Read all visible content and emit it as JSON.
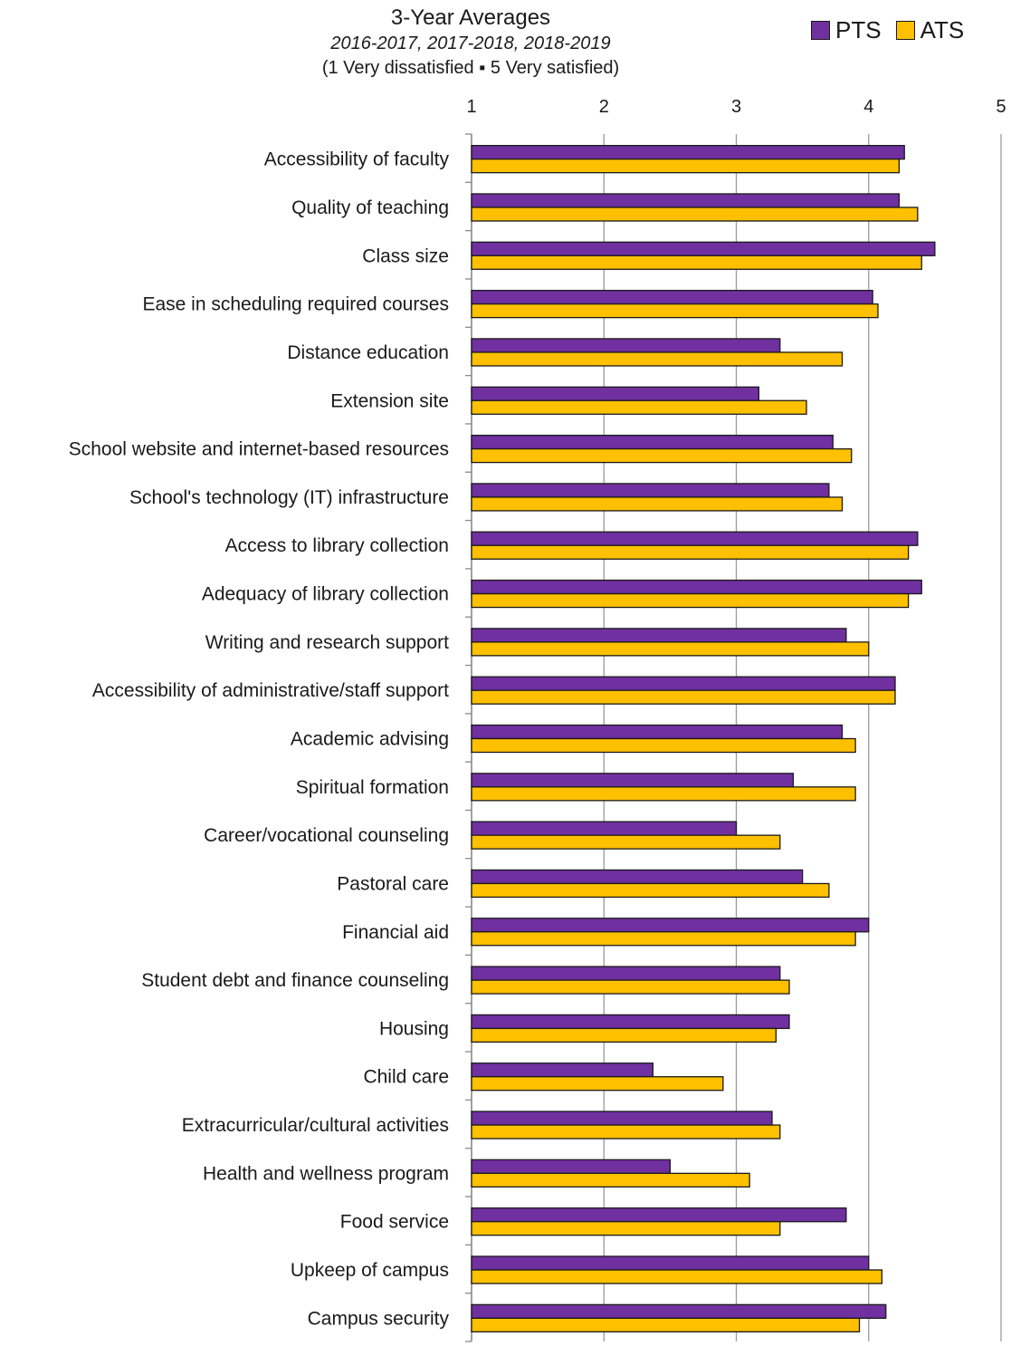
{
  "chart_data": {
    "type": "bar",
    "orientation": "horizontal",
    "title": "3-Year Averages",
    "subtitle": "2016-2017, 2017-2018, 2018-2019",
    "scale_note": "(1 Very dissatisfied ▪ 5 Very satisfied)",
    "xlabel": "",
    "ylabel": "",
    "xlim": [
      1,
      5
    ],
    "xticks": [
      "1",
      "2",
      "3",
      "4",
      "5"
    ],
    "grid": true,
    "legend_position": "top-right",
    "categories": [
      "Accessibility of faculty",
      "Quality of teaching",
      "Class size",
      "Ease in scheduling required courses",
      "Distance education",
      "Extension site",
      "School website and internet-based resources",
      "School's technology (IT) infrastructure",
      "Access to library collection",
      "Adequacy of library collection",
      "Writing and research support",
      "Accessibility of administrative/staff support",
      "Academic advising",
      "Spiritual formation",
      "Career/vocational counseling",
      "Pastoral care",
      "Financial aid",
      "Student debt and finance counseling",
      "Housing",
      "Child care",
      "Extracurricular/cultural activities",
      "Health and wellness program",
      "Food service",
      "Upkeep of campus",
      "Campus security"
    ],
    "series": [
      {
        "name": "PTS",
        "color": "#7030a0",
        "values": [
          4.27,
          4.23,
          4.5,
          4.03,
          3.33,
          3.17,
          3.73,
          3.7,
          4.37,
          4.4,
          3.83,
          4.2,
          3.8,
          3.43,
          3.0,
          3.5,
          4.0,
          3.33,
          3.4,
          2.37,
          3.27,
          2.5,
          3.83,
          4.0,
          4.13
        ]
      },
      {
        "name": "ATS",
        "color": "#ffc000",
        "values": [
          4.23,
          4.37,
          4.4,
          4.07,
          3.8,
          3.53,
          3.87,
          3.8,
          4.3,
          4.3,
          4.0,
          4.2,
          3.9,
          3.9,
          3.33,
          3.7,
          3.9,
          3.4,
          3.3,
          2.9,
          3.33,
          3.1,
          3.33,
          4.1,
          3.93
        ]
      }
    ]
  }
}
